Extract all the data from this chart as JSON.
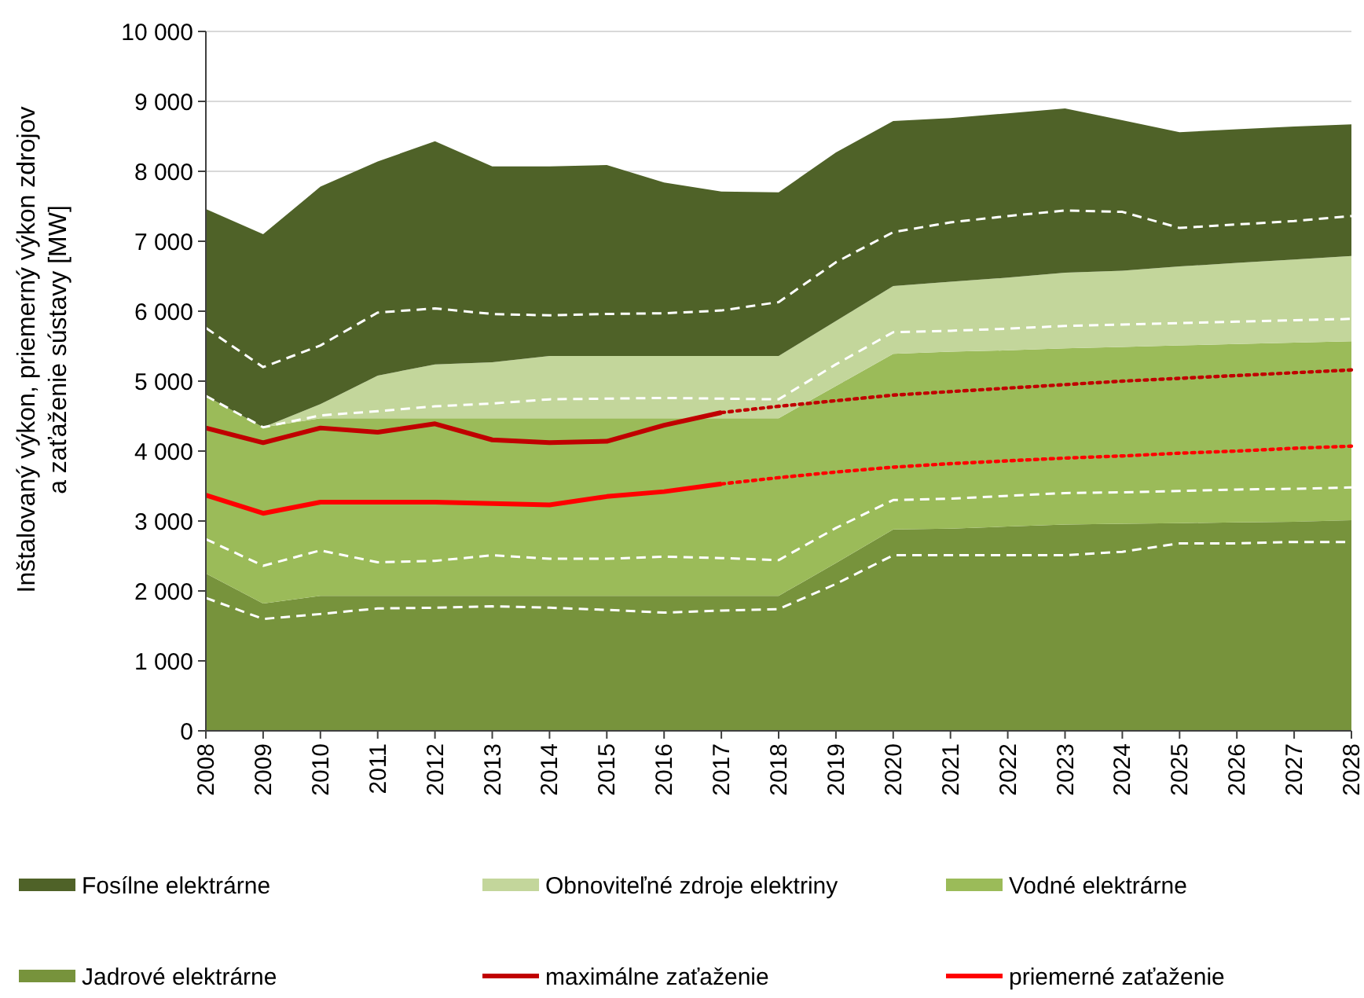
{
  "chart_data": {
    "type": "area",
    "stacked": true,
    "ylabel": "Inštalovaný výkon, priemerný výkon zdrojov\na zaťaženie sústavy [MW]",
    "categories": [
      "2008",
      "2009",
      "2010",
      "2011",
      "2012",
      "2013",
      "2014",
      "2015",
      "2016",
      "2017",
      "2018",
      "2019",
      "2020",
      "2021",
      "2022",
      "2023",
      "2024",
      "2025",
      "2026",
      "2027",
      "2028"
    ],
    "ylim": [
      0,
      10000
    ],
    "yticks": [
      0,
      {
        "value": 1000,
        "label": "1 000"
      },
      {
        "value": 2000,
        "label": "2 000"
      },
      {
        "value": 3000,
        "label": "3 000"
      },
      {
        "value": 4000,
        "label": "4 000"
      },
      {
        "value": 5000,
        "label": "5 000"
      },
      {
        "value": 6000,
        "label": "6 000"
      },
      {
        "value": 7000,
        "label": "7 000"
      },
      {
        "value": 8000,
        "label": "8 000"
      },
      {
        "value": 9000,
        "label": "9 000"
      },
      {
        "value": 10000,
        "label": "10 000"
      }
    ],
    "grid": "y",
    "legend": "bottom",
    "series": [
      {
        "name": "Jadrové elektrárne",
        "type": "area",
        "color": "#77933c",
        "values": [
          2250,
          1820,
          1930,
          1930,
          1930,
          1930,
          1930,
          1930,
          1930,
          1930,
          1930,
          2400,
          2880,
          2890,
          2920,
          2950,
          2960,
          2970,
          2980,
          2990,
          3010
        ]
      },
      {
        "name": "Vodné elektrárne",
        "type": "area",
        "color": "#9bbb59",
        "values": [
          2540,
          2520,
          2540,
          2540,
          2540,
          2540,
          2540,
          2540,
          2540,
          2540,
          2540,
          2530,
          2510,
          2530,
          2520,
          2520,
          2530,
          2540,
          2550,
          2560,
          2560
        ]
      },
      {
        "name": "Obnoviteľné zdroje elektriny",
        "type": "area",
        "color": "#c3d69b",
        "values": [
          0,
          0,
          200,
          610,
          770,
          800,
          890,
          890,
          890,
          890,
          890,
          930,
          970,
          1000,
          1040,
          1080,
          1090,
          1130,
          1160,
          1190,
          1220
        ]
      },
      {
        "name": "Fosílne elektrárne",
        "type": "area",
        "color": "#4f6228",
        "values": [
          2670,
          2760,
          3110,
          3060,
          3190,
          2800,
          2710,
          2730,
          2480,
          2350,
          2340,
          2410,
          2360,
          2340,
          2350,
          2350,
          2150,
          1920,
          1910,
          1900,
          1880
        ]
      },
      {
        "type": "line",
        "color": "#ffffff",
        "line_style": "dashed",
        "values": [
          1900,
          1600,
          1670,
          1750,
          1760,
          1780,
          1760,
          1730,
          1690,
          1720,
          1740,
          2100,
          2510,
          2510,
          2510,
          2510,
          2560,
          2680,
          2680,
          2700,
          2700
        ]
      },
      {
        "type": "line",
        "color": "#ffffff",
        "line_style": "dashed",
        "values": [
          2740,
          2360,
          2580,
          2410,
          2430,
          2510,
          2460,
          2460,
          2490,
          2470,
          2440,
          2900,
          3300,
          3320,
          3360,
          3400,
          3410,
          3430,
          3450,
          3460,
          3480
        ]
      },
      {
        "type": "line",
        "color": "#ffffff",
        "line_style": "dashed",
        "values": [
          4790,
          4340,
          4510,
          4570,
          4640,
          4680,
          4740,
          4750,
          4760,
          4750,
          4740,
          5240,
          5700,
          5720,
          5750,
          5790,
          5810,
          5830,
          5850,
          5870,
          5890
        ]
      },
      {
        "type": "line",
        "color": "#ffffff",
        "line_style": "dashed",
        "values": [
          5760,
          5200,
          5510,
          5980,
          6040,
          5960,
          5940,
          5960,
          5970,
          6010,
          6130,
          6700,
          7130,
          7270,
          7360,
          7440,
          7420,
          7190,
          7240,
          7290,
          7360
        ]
      },
      {
        "name": "maximálne zaťaženie",
        "type": "line",
        "color": "#c00000",
        "line_style": "solid",
        "values": [
          4330,
          4120,
          4330,
          4270,
          4390,
          4160,
          4120,
          4140,
          4370,
          4550,
          null,
          null,
          null,
          null,
          null,
          null,
          null,
          null,
          null,
          null,
          null
        ]
      },
      {
        "name": "priemerné zaťaženie",
        "type": "line",
        "color": "#ff0000",
        "line_style": "solid",
        "values": [
          3370,
          3110,
          3270,
          3270,
          3270,
          3250,
          3230,
          3350,
          3420,
          3530,
          null,
          null,
          null,
          null,
          null,
          null,
          null,
          null,
          null,
          null,
          null
        ]
      },
      {
        "type": "line",
        "color": "#c00000",
        "line_style": "dotted",
        "values": [
          null,
          null,
          null,
          null,
          null,
          null,
          null,
          null,
          null,
          4550,
          4640,
          4720,
          4800,
          4850,
          4900,
          4950,
          5000,
          5040,
          5080,
          5120,
          5160
        ]
      },
      {
        "type": "line",
        "color": "#ff0000",
        "line_style": "dotted",
        "values": [
          null,
          null,
          null,
          null,
          null,
          null,
          null,
          null,
          null,
          3530,
          3620,
          3700,
          3770,
          3820,
          3860,
          3900,
          3930,
          3970,
          4000,
          4040,
          4070
        ]
      }
    ]
  }
}
